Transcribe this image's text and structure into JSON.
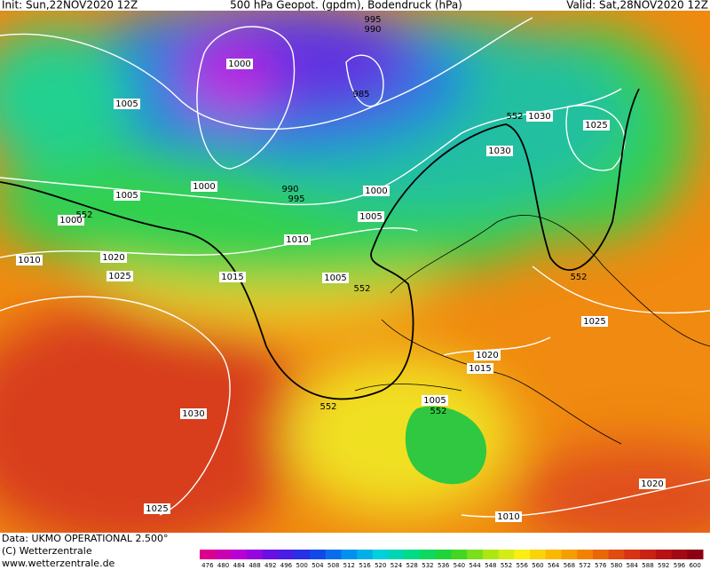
{
  "header": {
    "init": "Init: Sun,22NOV2020 12Z",
    "title": "500 hPa Geopot. (gpdm), Bodendruck (hPa)",
    "valid": "Valid: Sat,28NOV2020 12Z"
  },
  "contour_labels": [
    "995",
    "990",
    "1000",
    "985",
    "1005",
    "552",
    "1030",
    "1025",
    "1030",
    "1000",
    "990",
    "995",
    "1000",
    "1005",
    "1000",
    "552",
    "1005",
    "1010",
    "1010",
    "1020",
    "1025",
    "1015",
    "1005",
    "552",
    "552",
    "1025",
    "1020",
    "1015",
    "1030",
    "552",
    "1005",
    "552",
    "1020",
    "1025",
    "1010"
  ],
  "colorbar": {
    "labels": [
      476,
      480,
      484,
      488,
      492,
      496,
      500,
      504,
      508,
      512,
      516,
      520,
      524,
      528,
      532,
      536,
      540,
      544,
      548,
      552,
      556,
      560,
      564,
      568,
      572,
      576,
      580,
      584,
      588,
      592,
      596,
      600
    ]
  },
  "footer": {
    "data": "Data: UKMO OPERATIONAL 2.500°",
    "copyright": "(C) Wetterzentrale",
    "url": "www.wetterzentrale.de"
  }
}
